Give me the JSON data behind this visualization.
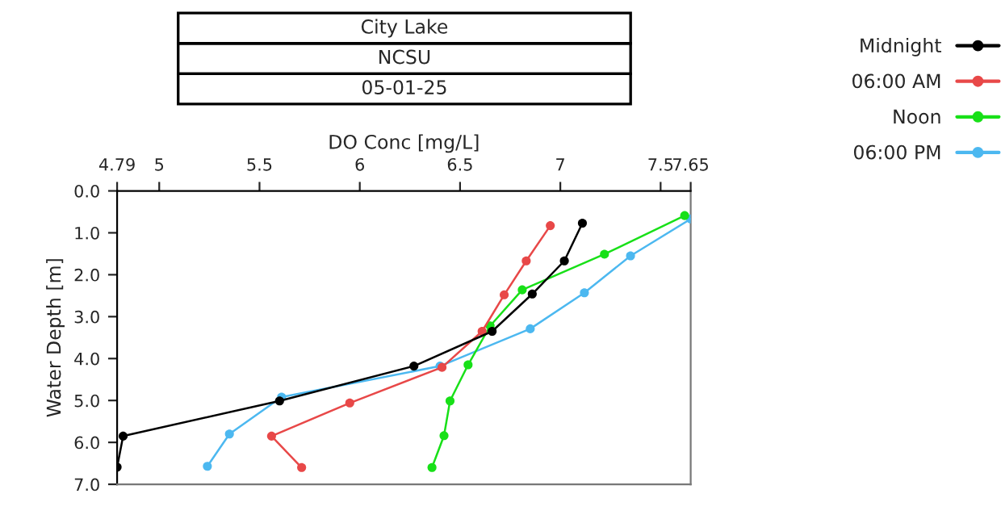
{
  "chart_data": {
    "type": "line",
    "title": "City Lake",
    "subtitle": "NCSU",
    "annotations": [
      "05-01-25"
    ],
    "xlabel": "DO Conc [mg/L]",
    "ylabel": "Water Depth [m]",
    "xlim": [
      4.79,
      7.65
    ],
    "xticks": [
      4.79,
      5,
      5.5,
      6,
      6.5,
      7,
      7.5,
      7.65
    ],
    "ylim": [
      7.0,
      0.0
    ],
    "yticks": [
      {
        "value": 0,
        "label": "0.0"
      },
      {
        "value": 1,
        "label": "1.0"
      },
      {
        "value": 2,
        "label": "2.0"
      },
      {
        "value": 3,
        "label": "3.0"
      },
      {
        "value": 4,
        "label": "4.0"
      },
      {
        "value": 5,
        "label": "5.0"
      },
      {
        "value": 6,
        "label": "6.0"
      },
      {
        "value": 7,
        "label": "7.0"
      }
    ],
    "grid": false,
    "legend": "top right",
    "marker": "circle",
    "line_style": "solid",
    "series": [
      {
        "name": "Midnight",
        "color": "#000000",
        "x": [
          7.11,
          7.02,
          6.86,
          6.66,
          6.27,
          5.6,
          4.82,
          4.79
        ],
        "values": [
          0.77,
          1.67,
          2.46,
          3.35,
          4.18,
          5.01,
          5.85,
          6.59
        ]
      },
      {
        "name": "06:00 AM",
        "color": "#e84848",
        "x": [
          6.95,
          6.83,
          6.72,
          6.61,
          6.41,
          5.95,
          5.56,
          5.71
        ],
        "values": [
          0.83,
          1.67,
          2.48,
          3.35,
          4.21,
          5.06,
          5.85,
          6.6
        ]
      },
      {
        "name": "Noon",
        "color": "#18e018",
        "x": [
          7.62,
          7.22,
          6.81,
          6.65,
          6.54,
          6.45,
          6.42,
          6.36
        ],
        "values": [
          0.59,
          1.51,
          2.36,
          3.22,
          4.15,
          5.01,
          5.84,
          6.6
        ]
      },
      {
        "name": "06:00 PM",
        "color": "#4cb8f0",
        "x": [
          7.65,
          7.35,
          7.12,
          6.85,
          6.4,
          5.61,
          5.35,
          5.24
        ],
        "values": [
          0.67,
          1.55,
          2.43,
          3.29,
          4.18,
          4.92,
          5.8,
          6.57
        ]
      }
    ]
  }
}
